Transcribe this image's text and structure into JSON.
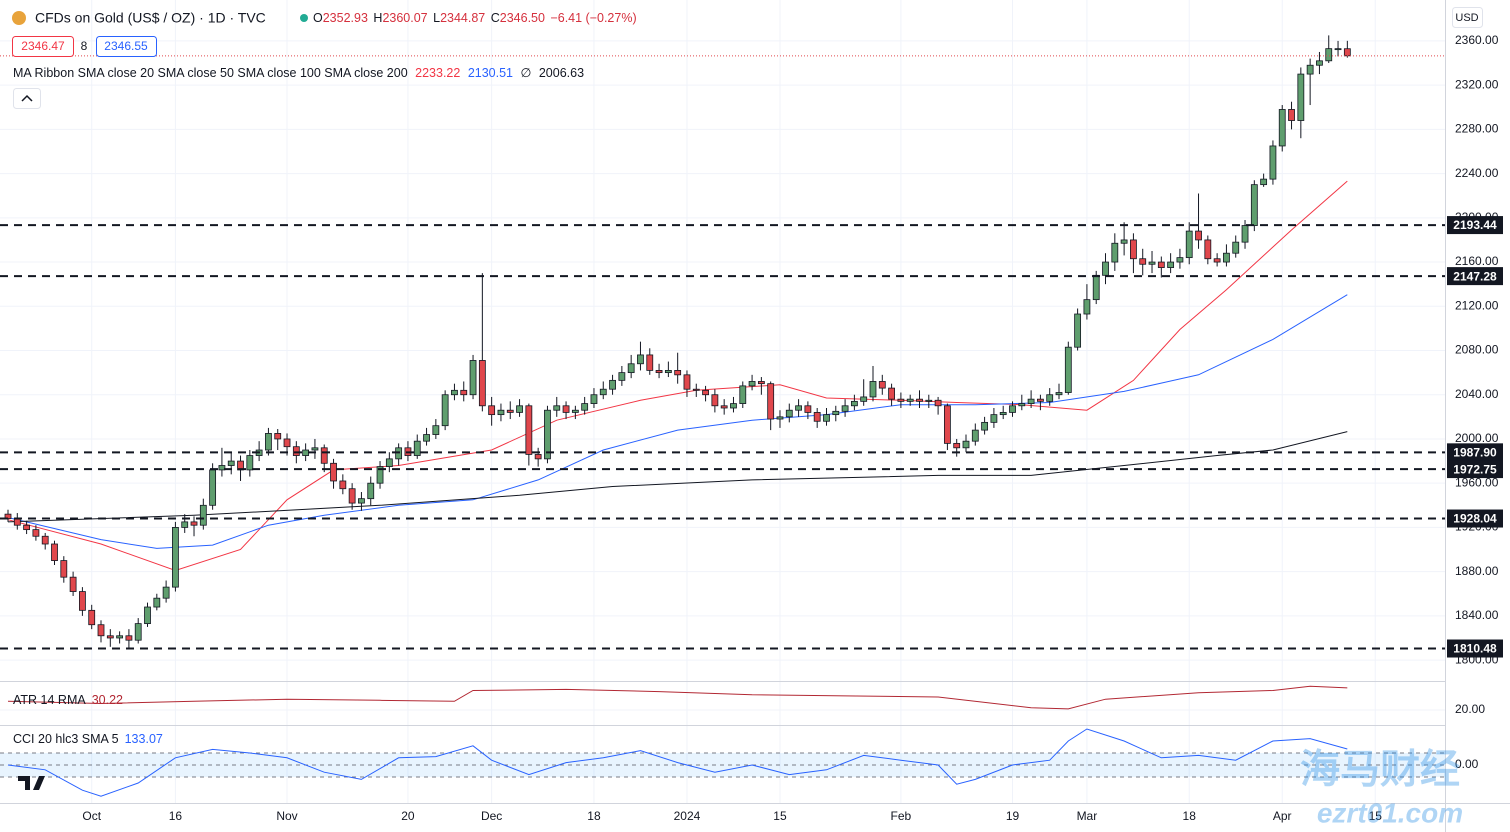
{
  "chart_data": [
    {
      "type": "candlestick",
      "title": "CFDs on Gold (US$ / OZ) · 1D · TVC",
      "ohlc_labels": [
        "O",
        "H",
        "L",
        "C"
      ],
      "last_close_label": "2346.50",
      "change_label": "−6.41 (−0.27%)",
      "price_boxes": [
        "2346.47",
        "8",
        "2346.55"
      ],
      "currency": "USD",
      "ma_legend": "MA Ribbon SMA close 20 SMA close 50 SMA close 100 SMA close 200",
      "ma_missing": "∅",
      "up_color": "#5f9e6e",
      "down_color": "#e0474c",
      "grid": true,
      "xlim": [
        -0.86,
        154.5
      ],
      "xticks": [
        {
          "value": 9,
          "label": "Oct"
        },
        {
          "value": 18,
          "label": "16"
        },
        {
          "value": 30,
          "label": "Nov"
        },
        {
          "value": 43,
          "label": "20"
        },
        {
          "value": 52,
          "label": "Dec"
        },
        {
          "value": 63,
          "label": "18"
        },
        {
          "value": 73,
          "label": "2024"
        },
        {
          "value": 83,
          "label": "15"
        },
        {
          "value": 96,
          "label": "Feb"
        },
        {
          "value": 108,
          "label": "19"
        },
        {
          "value": 116,
          "label": "Mar"
        },
        {
          "value": 127,
          "label": "18"
        },
        {
          "value": 137,
          "label": "Apr"
        },
        {
          "value": 147,
          "label": "15"
        }
      ],
      "ylim": [
        1782,
        2397
      ],
      "yticks": [
        {
          "value": 1800,
          "label": "1800.00"
        },
        {
          "value": 1840,
          "label": "1840.00"
        },
        {
          "value": 1880,
          "label": "1880.00"
        },
        {
          "value": 1920,
          "label": "1920.00"
        },
        {
          "value": 1960,
          "label": "1960.00"
        },
        {
          "value": 2000,
          "label": "2000.00"
        },
        {
          "value": 2040,
          "label": "2040.00"
        },
        {
          "value": 2080,
          "label": "2080.00"
        },
        {
          "value": 2120,
          "label": "2120.00"
        },
        {
          "value": 2160,
          "label": "2160.00"
        },
        {
          "value": 2200,
          "label": "2200.00"
        },
        {
          "value": 2240,
          "label": "2240.00"
        },
        {
          "value": 2280,
          "label": "2280.00"
        },
        {
          "value": 2320,
          "label": "2320.00"
        },
        {
          "value": 2360,
          "label": "2360.00"
        }
      ],
      "open": [
        1932,
        1928,
        1922,
        1918,
        1912,
        1905,
        1890,
        1875,
        1862,
        1845,
        1832,
        1822,
        1820,
        1822,
        1818,
        1833,
        1848,
        1856,
        1866,
        1920,
        1925,
        1922,
        1940,
        1972,
        1976,
        1980,
        1972,
        1985,
        1990,
        2005,
        2000,
        1993,
        1985,
        1990,
        1992,
        1978,
        1962,
        1955,
        1942,
        1946,
        1960,
        1975,
        1982,
        1992,
        1985,
        1998,
        2004,
        2012,
        2040,
        2044,
        2040,
        2071,
        2030,
        2022,
        2026,
        2024,
        2030,
        1986,
        1982,
        2026,
        2030,
        2024,
        2026,
        2032,
        2040,
        2045,
        2053,
        2060,
        2068,
        2076,
        2062,
        2060,
        2062,
        2058,
        2045,
        2044,
        2040,
        2030,
        2028,
        2032,
        2048,
        2052,
        2050,
        2018,
        2020,
        2026,
        2030,
        2024,
        2016,
        2022,
        2025,
        2030,
        2034,
        2038,
        2052,
        2046,
        2036,
        2034,
        2036,
        2034,
        2035,
        2030,
        1996,
        1992,
        1998,
        2008,
        2015,
        2022,
        2024,
        2030,
        2032,
        2036,
        2034,
        2040,
        2042,
        2083,
        2113,
        2126,
        2148,
        2160,
        2177,
        2180,
        2163,
        2158,
        2160,
        2155,
        2160,
        2164,
        2188,
        2180,
        2163,
        2160,
        2168,
        2178,
        2193,
        2230,
        2235,
        2265,
        2298,
        2288,
        2330,
        2338,
        2342,
        2353,
        2352.93
      ],
      "high": [
        1936,
        1933,
        1926,
        1922,
        1915,
        1908,
        1894,
        1880,
        1866,
        1850,
        1836,
        1828,
        1826,
        1828,
        1838,
        1852,
        1860,
        1872,
        1925,
        1932,
        1930,
        1946,
        1978,
        1992,
        1988,
        1985,
        1990,
        1998,
        2010,
        2009,
        2005,
        1998,
        1996,
        2000,
        1995,
        1982,
        1968,
        1960,
        1952,
        1966,
        1980,
        1988,
        1996,
        1998,
        2004,
        2010,
        2018,
        2044,
        2050,
        2052,
        2076,
        2150,
        2038,
        2032,
        2034,
        2036,
        2032,
        1992,
        2030,
        2038,
        2034,
        2030,
        2038,
        2046,
        2052,
        2058,
        2066,
        2076,
        2088,
        2082,
        2068,
        2070,
        2078,
        2062,
        2050,
        2048,
        2045,
        2036,
        2038,
        2052,
        2058,
        2056,
        2052,
        2026,
        2032,
        2036,
        2034,
        2028,
        2028,
        2030,
        2036,
        2040,
        2054,
        2066,
        2058,
        2050,
        2042,
        2040,
        2044,
        2040,
        2038,
        2032,
        2000,
        2004,
        2014,
        2020,
        2028,
        2030,
        2034,
        2040,
        2044,
        2040,
        2046,
        2050,
        2088,
        2118,
        2140,
        2152,
        2168,
        2186,
        2196,
        2186,
        2172,
        2170,
        2165,
        2168,
        2172,
        2196,
        2222,
        2184,
        2168,
        2176,
        2184,
        2198,
        2234,
        2240,
        2270,
        2302,
        2305,
        2336,
        2344,
        2350,
        2365,
        2360,
        2360.07
      ],
      "low": [
        1925,
        1918,
        1914,
        1908,
        1900,
        1886,
        1870,
        1858,
        1840,
        1828,
        1816,
        1812,
        1815,
        1810,
        1815,
        1830,
        1845,
        1852,
        1862,
        1915,
        1912,
        1918,
        1936,
        1966,
        1968,
        1962,
        1966,
        1980,
        1985,
        1990,
        1985,
        1978,
        1980,
        1982,
        1970,
        1955,
        1950,
        1936,
        1935,
        1940,
        1955,
        1970,
        1976,
        1980,
        1982,
        1994,
        2000,
        2008,
        2035,
        2034,
        2036,
        2025,
        2012,
        2016,
        2018,
        2020,
        1976,
        1975,
        1978,
        2020,
        2018,
        2018,
        2022,
        2028,
        2036,
        2040,
        2048,
        2055,
        2062,
        2058,
        2055,
        2056,
        2050,
        2038,
        2038,
        2034,
        2024,
        2022,
        2024,
        2028,
        2044,
        2040,
        2008,
        2010,
        2015,
        2020,
        2018,
        2010,
        2012,
        2016,
        2020,
        2026,
        2030,
        2034,
        2040,
        2030,
        2028,
        2030,
        2028,
        2028,
        2022,
        1990,
        1984,
        1988,
        1994,
        2004,
        2010,
        2018,
        2020,
        2026,
        2028,
        2026,
        2030,
        2036,
        2040,
        2080,
        2108,
        2122,
        2140,
        2152,
        2166,
        2150,
        2148,
        2150,
        2146,
        2150,
        2154,
        2158,
        2172,
        2158,
        2156,
        2156,
        2164,
        2172,
        2188,
        2228,
        2230,
        2260,
        2280,
        2272,
        2302,
        2330,
        2340,
        2346,
        2344.87
      ],
      "close": [
        1928,
        1922,
        1918,
        1912,
        1905,
        1890,
        1875,
        1862,
        1845,
        1832,
        1822,
        1820,
        1822,
        1818,
        1833,
        1848,
        1856,
        1866,
        1920,
        1925,
        1922,
        1940,
        1972,
        1976,
        1980,
        1972,
        1985,
        1990,
        2005,
        2000,
        1993,
        1985,
        1990,
        1992,
        1978,
        1962,
        1955,
        1942,
        1946,
        1960,
        1975,
        1982,
        1992,
        1985,
        1998,
        2004,
        2012,
        2040,
        2044,
        2040,
        2071,
        2030,
        2022,
        2026,
        2024,
        2030,
        1986,
        1982,
        2026,
        2030,
        2024,
        2026,
        2032,
        2040,
        2045,
        2053,
        2060,
        2068,
        2076,
        2062,
        2060,
        2062,
        2058,
        2045,
        2044,
        2040,
        2030,
        2028,
        2032,
        2048,
        2052,
        2050,
        2018,
        2020,
        2026,
        2030,
        2024,
        2016,
        2022,
        2025,
        2030,
        2034,
        2038,
        2052,
        2046,
        2036,
        2034,
        2036,
        2034,
        2035,
        2030,
        1996,
        1992,
        1998,
        2008,
        2015,
        2022,
        2024,
        2030,
        2032,
        2036,
        2034,
        2040,
        2042,
        2083,
        2113,
        2126,
        2148,
        2160,
        2177,
        2180,
        2163,
        2158,
        2160,
        2155,
        2160,
        2164,
        2188,
        2180,
        2163,
        2160,
        2168,
        2178,
        2193,
        2230,
        2235,
        2265,
        2298,
        2288,
        2330,
        2338,
        2342,
        2353,
        2353,
        2346.5
      ],
      "series": [
        {
          "color": "#f23645",
          "x": [
            0,
            10,
            18,
            25,
            30,
            35,
            42,
            52,
            59,
            68,
            74,
            83,
            88,
            96,
            102,
            109,
            116,
            121,
            126,
            131,
            138,
            144
          ],
          "values": [
            1927,
            1905,
            1881,
            1900,
            1945,
            1972,
            1976,
            1990,
            2017,
            2035,
            2044,
            2049,
            2037,
            2035,
            2033,
            2031,
            2026,
            2053,
            2099,
            2135,
            2189,
            2233.22
          ]
        },
        {
          "color": "#2962ff",
          "x": [
            0,
            10,
            16,
            22,
            28,
            34,
            42,
            50,
            57,
            64,
            72,
            80,
            88,
            96,
            104,
            112,
            120,
            128,
            136,
            144
          ],
          "values": [
            1929,
            1909,
            1901,
            1904,
            1922,
            1931,
            1940,
            1945,
            1963,
            1990,
            2008,
            2017,
            2022,
            2031,
            2031,
            2033,
            2043,
            2058,
            2090,
            2130.51
          ]
        },
        {
          "color": "#131722",
          "x": [
            0,
            20,
            40,
            55,
            65,
            80,
            100,
            110,
            120,
            130,
            136,
            144
          ],
          "values": [
            1925,
            1931,
            1940,
            1949,
            1957,
            1963,
            1967,
            1967,
            1976,
            1985,
            1990,
            2006.63
          ]
        }
      ],
      "levels": [
        2193.44,
        2147.28,
        {
          "value": 1987.9,
          "label": "1987.90"
        },
        1972.75,
        1928.04,
        1810.48
      ],
      "level_color": "#131722"
    },
    {
      "type": "line",
      "title": "ATR 14 RMA",
      "color": "#b22833",
      "ylim": [
        14,
        32
      ],
      "yticks": [
        {
          "value": 20,
          "label": "20.00"
        }
      ],
      "x": [
        0,
        10,
        20,
        30,
        40,
        48,
        50,
        60,
        70,
        80,
        90,
        100,
        110,
        114,
        118,
        128,
        136,
        140,
        144
      ],
      "values": [
        24,
        23,
        24,
        25,
        24.5,
        24,
        29,
        29.5,
        28.5,
        27,
        26.5,
        26,
        21,
        20.5,
        25,
        28,
        29,
        31,
        30.22
      ]
    },
    {
      "type": "line",
      "title": "CCI 20 hlc3 SMA 5",
      "color": "#2962ff",
      "band": [
        -100,
        100
      ],
      "band_color": "#2196f3",
      "ylim": [
        -308,
        308
      ],
      "yticks": [
        {
          "value": 0,
          "label": "0.00"
        }
      ],
      "x": [
        0,
        4,
        8,
        10,
        14,
        18,
        22,
        26,
        30,
        34,
        38,
        42,
        46,
        50,
        52,
        56,
        60,
        64,
        68,
        72,
        76,
        80,
        84,
        88,
        92,
        96,
        100,
        102,
        104,
        108,
        112,
        114,
        116,
        120,
        124,
        128,
        132,
        136,
        140,
        144
      ],
      "values": [
        0,
        -40,
        -210,
        -260,
        -150,
        60,
        130,
        100,
        60,
        -60,
        -120,
        60,
        70,
        160,
        40,
        -80,
        20,
        60,
        120,
        20,
        -60,
        0,
        -80,
        -40,
        80,
        40,
        0,
        -160,
        -120,
        0,
        40,
        200,
        300,
        200,
        60,
        80,
        40,
        200,
        220,
        133.07
      ]
    }
  ],
  "watermark": [
    "海马财经",
    "ezrt01.com"
  ]
}
